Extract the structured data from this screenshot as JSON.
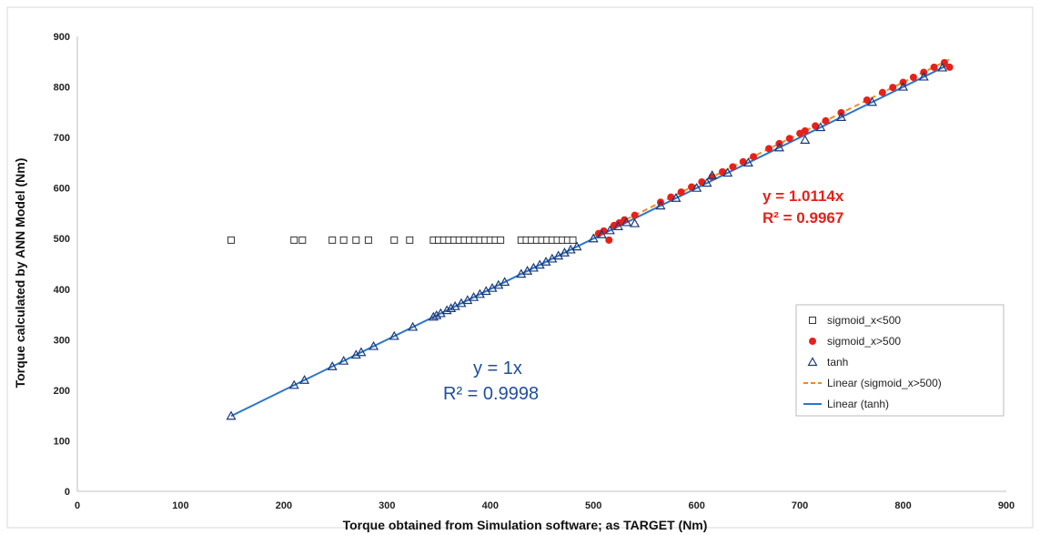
{
  "chart_data": {
    "type": "scatter",
    "title": "",
    "xlabel": "Torque obtained from Simulation software; as TARGET (Nm)",
    "ylabel": "Torque calculated by ANN Model (Nm)",
    "xlim": [
      0,
      900
    ],
    "ylim": [
      0,
      900
    ],
    "xticks": [
      "0",
      "100",
      "200",
      "300",
      "400",
      "500",
      "600",
      "700",
      "800",
      "900"
    ],
    "yticks": [
      "0",
      "100",
      "200",
      "300",
      "400",
      "500",
      "600",
      "700",
      "800",
      "900"
    ],
    "grid": false,
    "legend_position": "right",
    "series": [
      {
        "name": "sigmoid_x<500",
        "marker": "square-open",
        "color": "#333333",
        "x": [
          149,
          210,
          218,
          247,
          258,
          270,
          282,
          307,
          322,
          345,
          350,
          355,
          360,
          365,
          370,
          375,
          380,
          385,
          390,
          395,
          400,
          405,
          410,
          430,
          435,
          440,
          445,
          450,
          455,
          460,
          465,
          470,
          475,
          480
        ],
        "y": [
          497,
          497,
          497,
          497,
          497,
          497,
          497,
          497,
          497,
          497,
          497,
          497,
          497,
          497,
          497,
          497,
          497,
          497,
          497,
          497,
          497,
          497,
          497,
          497,
          497,
          497,
          497,
          497,
          497,
          497,
          497,
          497,
          497,
          497
        ]
      },
      {
        "name": "sigmoid_x>500",
        "marker": "circle-filled",
        "color": "#e8201a",
        "x": [
          505,
          510,
          515,
          520,
          525,
          530,
          540,
          565,
          575,
          585,
          595,
          605,
          615,
          625,
          635,
          645,
          655,
          670,
          680,
          690,
          700,
          705,
          715,
          725,
          740,
          765,
          780,
          790,
          800,
          810,
          820,
          830,
          840,
          845
        ],
        "y": [
          510,
          515,
          497,
          526,
          531,
          537,
          546,
          572,
          582,
          592,
          602,
          612,
          622,
          632,
          642,
          652,
          662,
          678,
          688,
          698,
          708,
          713,
          723,
          733,
          749,
          774,
          789,
          799,
          809,
          819,
          829,
          839,
          848,
          839
        ]
      },
      {
        "name": "tanh",
        "marker": "triangle-open",
        "color": "#1a3a7a",
        "x": [
          149,
          210,
          220,
          247,
          258,
          270,
          275,
          287,
          307,
          325,
          345,
          348,
          352,
          358,
          362,
          366,
          372,
          378,
          384,
          390,
          396,
          402,
          408,
          414,
          430,
          436,
          442,
          448,
          454,
          460,
          466,
          472,
          478,
          484,
          500,
          508,
          516,
          524,
          532,
          540,
          565,
          580,
          600,
          610,
          615,
          630,
          650,
          680,
          705,
          720,
          740,
          770,
          800,
          820,
          838
        ],
        "y": [
          149,
          210,
          220,
          247,
          258,
          270,
          275,
          287,
          307,
          325,
          345,
          348,
          352,
          358,
          362,
          366,
          372,
          378,
          384,
          390,
          396,
          402,
          408,
          414,
          430,
          436,
          442,
          448,
          454,
          460,
          466,
          472,
          478,
          484,
          500,
          508,
          516,
          524,
          532,
          530,
          565,
          580,
          600,
          610,
          625,
          630,
          650,
          680,
          695,
          720,
          740,
          770,
          800,
          820,
          838
        ]
      },
      {
        "name": "Linear (sigmoid_x>500)",
        "type": "trendline",
        "dash": true,
        "color": "#f08a24",
        "slope": 1.0114,
        "x": [
          500,
          845
        ]
      },
      {
        "name": "Linear (tanh)",
        "type": "trendline",
        "dash": false,
        "color": "#2e75c8",
        "slope": 1.0,
        "x": [
          149,
          845
        ]
      }
    ],
    "annotations": [
      {
        "text": "y = 1.0114x",
        "color": "#e8201a"
      },
      {
        "text": "R² = 0.9967",
        "color": "#e8201a"
      },
      {
        "text": "y = 1x",
        "color": "#1f4e9e"
      },
      {
        "text": "R² = 0.9998",
        "color": "#1f4e9e"
      }
    ]
  }
}
